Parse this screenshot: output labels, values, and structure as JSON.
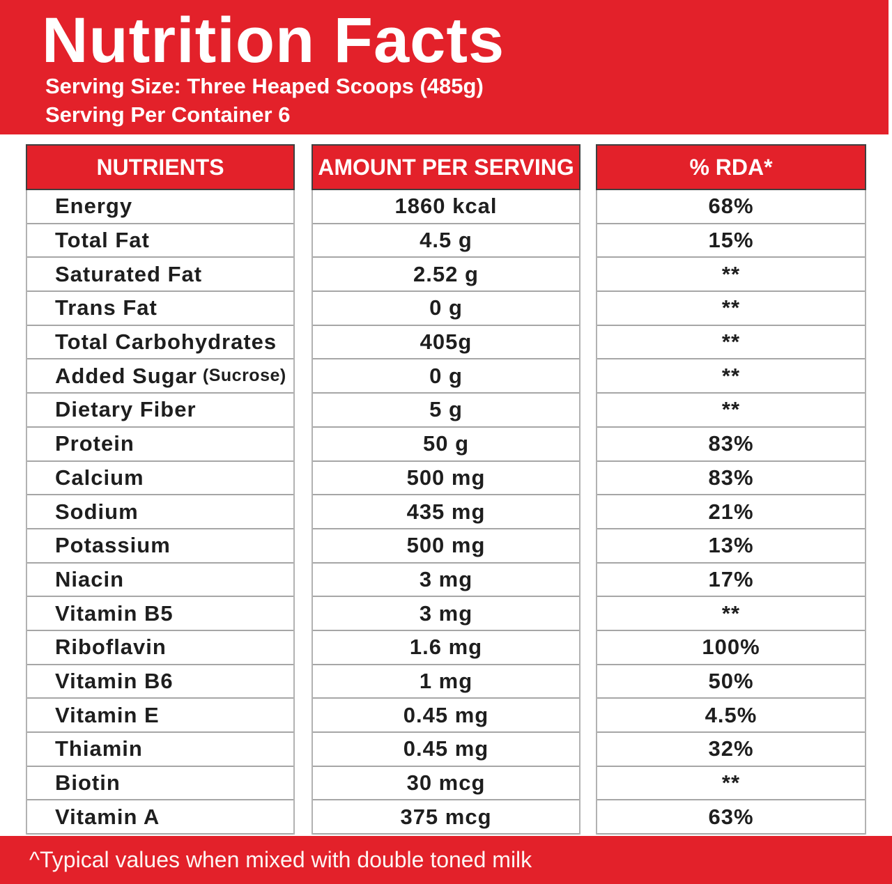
{
  "colors": {
    "red": "#e3212a",
    "text_dark": "#1e1e1e",
    "border_gray": "#a6a6a6",
    "white": "#ffffff"
  },
  "header": {
    "title": "Nutrition Facts",
    "serving_size": "Serving Size: Three Heaped Scoops (485g)",
    "servings_per_container": "Serving Per Container 6"
  },
  "table": {
    "columns": [
      "NUTRIENTS",
      "AMOUNT PER SERVING",
      "% RDA*"
    ],
    "rows": [
      {
        "name": "Energy",
        "note": "",
        "amount": "1860 kcal",
        "rda": "68%"
      },
      {
        "name": "Total Fat",
        "note": "",
        "amount": "4.5 g",
        "rda": "15%"
      },
      {
        "name": "Saturated Fat",
        "note": "",
        "amount": "2.52 g",
        "rda": "**"
      },
      {
        "name": "Trans Fat",
        "note": "",
        "amount": "0 g",
        "rda": "**"
      },
      {
        "name": "Total Carbohydrates",
        "note": "",
        "amount": "405g",
        "rda": "**"
      },
      {
        "name": "Added Sugar",
        "note": "(Sucrose)",
        "amount": "0 g",
        "rda": "**"
      },
      {
        "name": "Dietary Fiber",
        "note": "",
        "amount": "5 g",
        "rda": "**"
      },
      {
        "name": "Protein",
        "note": "",
        "amount": "50 g",
        "rda": "83%"
      },
      {
        "name": "Calcium",
        "note": "",
        "amount": "500 mg",
        "rda": "83%"
      },
      {
        "name": "Sodium",
        "note": "",
        "amount": "435 mg",
        "rda": "21%"
      },
      {
        "name": "Potassium",
        "note": "",
        "amount": "500 mg",
        "rda": "13%"
      },
      {
        "name": "Niacin",
        "note": "",
        "amount": "3 mg",
        "rda": "17%"
      },
      {
        "name": "Vitamin B5",
        "note": "",
        "amount": "3 mg",
        "rda": "**"
      },
      {
        "name": "Riboflavin",
        "note": "",
        "amount": "1.6 mg",
        "rda": "100%"
      },
      {
        "name": "Vitamin B6",
        "note": "",
        "amount": "1 mg",
        "rda": "50%"
      },
      {
        "name": "Vitamin E",
        "note": "",
        "amount": "0.45 mg",
        "rda": "4.5%"
      },
      {
        "name": "Thiamin",
        "note": "",
        "amount": "0.45 mg",
        "rda": "32%"
      },
      {
        "name": "Biotin",
        "note": "",
        "amount": "30 mcg",
        "rda": "**"
      },
      {
        "name": "Vitamin A",
        "note": "",
        "amount": "375 mcg",
        "rda": "63%"
      }
    ]
  },
  "footer": {
    "note": "^Typical values when mixed with double toned milk"
  }
}
